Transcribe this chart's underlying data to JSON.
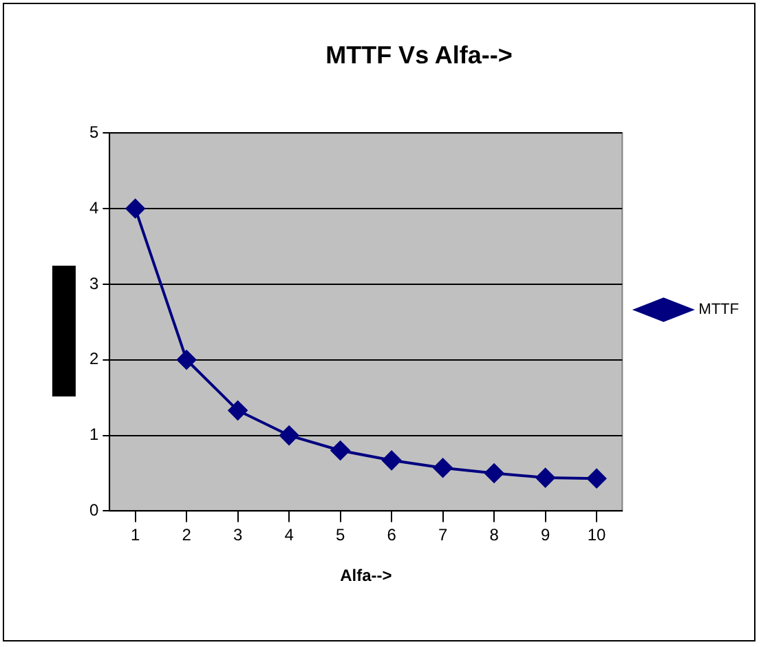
{
  "chart_data": {
    "type": "line",
    "title": "MTTF Vs Alfa-->",
    "xlabel": "Alfa-->",
    "categories": [
      "1",
      "2",
      "3",
      "4",
      "5",
      "6",
      "7",
      "8",
      "9",
      "10"
    ],
    "series": [
      {
        "name": "MTTF",
        "color": "#000080",
        "values": [
          4,
          2,
          1.33,
          1,
          0.8,
          0.67,
          0.57,
          0.5,
          0.44,
          0.43
        ]
      }
    ],
    "ylim": [
      0,
      5
    ],
    "yticks": [
      0,
      1,
      2,
      3,
      4,
      5
    ],
    "grid": "y",
    "legend": "right",
    "marker": "diamond",
    "line_style": "solid"
  }
}
